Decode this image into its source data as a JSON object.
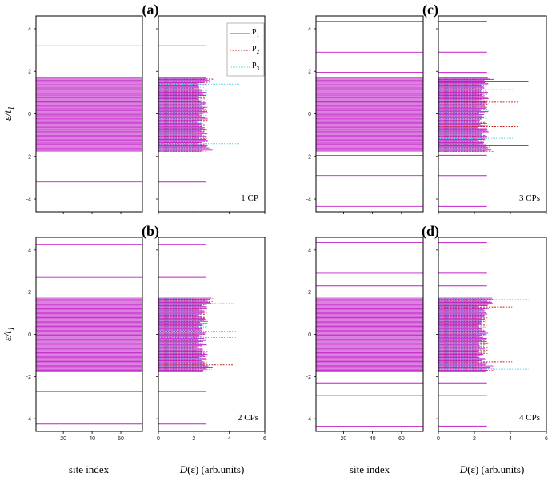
{
  "chart_data": {
    "type": "line",
    "y_label": "ε/t",
    "y_label_sub": "1",
    "x_label_site": "site index",
    "x_label_dos_italic": "D",
    "x_label_dos_rest": "(ε) (arb.units)",
    "ylim": [
      -4.6,
      4.6
    ],
    "y_ticks": [
      -4,
      -2,
      0,
      2,
      4
    ],
    "site_xlim": [
      1,
      75
    ],
    "site_x_ticks": [
      20,
      40,
      60
    ],
    "dos_xlim": [
      0,
      6
    ],
    "dos_x_ticks": [
      0,
      2,
      4,
      6
    ],
    "legend": [
      {
        "main": "P",
        "sub": "1",
        "color": "#c21fc9",
        "dash": ""
      },
      {
        "main": "P",
        "sub": "2",
        "color": "#c62828",
        "dash": "2,1.5"
      },
      {
        "main": "P",
        "sub": "3",
        "color": "#55d3e6",
        "dash": "1,1"
      }
    ],
    "band": {
      "min": -1.75,
      "max": 1.72
    },
    "panels": [
      {
        "id": "a",
        "label": "(a)",
        "annotation": "1 CP",
        "isolated": [
          3.2,
          -3.2
        ],
        "peaks": [
          {
            "y": 1.4,
            "value": 4.6,
            "color": "#55d3e6"
          },
          {
            "y": -1.4,
            "value": 4.6,
            "color": "#55d3e6"
          }
        ]
      },
      {
        "id": "c",
        "label": "(c)",
        "annotation": "3 CPs",
        "isolated": [
          4.35,
          2.9,
          1.95,
          -1.95,
          -2.9,
          -4.35
        ],
        "peaks": [
          {
            "y": 1.5,
            "value": 5.0,
            "color": "#c21fc9"
          },
          {
            "y": 0.55,
            "value": 4.5,
            "color": "#c62828"
          },
          {
            "y": -0.6,
            "value": 4.5,
            "color": "#c62828"
          },
          {
            "y": -1.5,
            "value": 5.0,
            "color": "#c21fc9"
          },
          {
            "y": 1.15,
            "value": 4.2,
            "color": "#55d3e6"
          },
          {
            "y": -1.15,
            "value": 4.2,
            "color": "#55d3e6"
          }
        ]
      },
      {
        "id": "b",
        "label": "(b)",
        "annotation": "2 CPs",
        "isolated": [
          4.25,
          2.7,
          -2.7,
          -4.25
        ],
        "peaks": [
          {
            "y": 1.45,
            "value": 4.3,
            "color": "#c62828"
          },
          {
            "y": -1.45,
            "value": 4.2,
            "color": "#c62828"
          },
          {
            "y": 0.15,
            "value": 4.4,
            "color": "#55d3e6"
          },
          {
            "y": -0.15,
            "value": 4.4,
            "color": "#55d3e6"
          }
        ]
      },
      {
        "id": "d",
        "label": "(d)",
        "annotation": "4 CPs",
        "isolated": [
          4.35,
          2.9,
          2.3,
          -2.3,
          -2.9,
          -4.35
        ],
        "peaks": [
          {
            "y": 1.65,
            "value": 5.0,
            "color": "#55d3e6"
          },
          {
            "y": -1.65,
            "value": 5.0,
            "color": "#55d3e6"
          },
          {
            "y": 1.3,
            "value": 4.1,
            "color": "#c62828"
          },
          {
            "y": -1.3,
            "value": 4.1,
            "color": "#c62828"
          }
        ]
      }
    ]
  }
}
